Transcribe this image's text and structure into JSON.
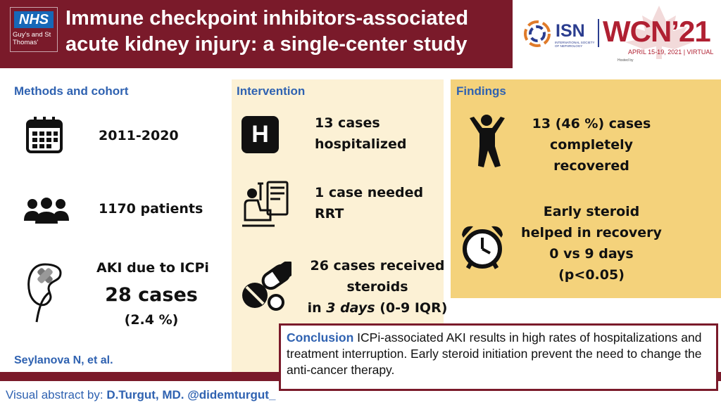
{
  "header": {
    "nhs_logo": "NHS",
    "nhs_trust": "Guy’s and St Thomas’",
    "title_line1": "Immune checkpoint inhibitors-associated",
    "title_line2": "acute kidney injury: a single-center study",
    "isn_label": "ISN",
    "isn_sub": "INTERNATIONAL SOCIETY OF NEPHROLOGY",
    "wcn_label": "WCN’21",
    "wcn_date": "APRIL 15-19, 2021 | VIRTUAL",
    "hosted_by": "Hosted by"
  },
  "methods": {
    "title": "Methods and cohort",
    "period": "2011-2020",
    "patients": "1170 patients",
    "aki_label": "AKI due to ICPi",
    "aki_cases": "28 cases",
    "aki_pct": "(2.4 %)",
    "icons": [
      "calendar-icon",
      "people-icon",
      "kidney-icon"
    ]
  },
  "intervention": {
    "title": "Intervention",
    "hosp_line1": "13 cases",
    "hosp_line2": "hospitalized",
    "rrt_line1": "1 case needed",
    "rrt_line2": "RRT",
    "ster_line1": "26 cases received",
    "ster_line2": "steroids",
    "ster_line3_pre": "in ",
    "ster_line3_em": "3 days",
    "ster_line3_post": " (0-9 IQR)",
    "hospital_icon_letter": "H",
    "icons": [
      "hospital-icon",
      "dialysis-icon",
      "pills-icon"
    ]
  },
  "findings": {
    "title": "Findings",
    "rec_line1": "13  (46 %) cases",
    "rec_line2": "completely",
    "rec_line3": "recovered",
    "ster_line1": "Early steroid",
    "ster_line2": "helped  in recovery",
    "ster_line3": "0 vs 9 days",
    "ster_line4": "(p<0.05)",
    "icons": [
      "person-jumping-icon",
      "alarm-clock-icon"
    ]
  },
  "author": "Seylanova N, et al.",
  "conclusion": {
    "label": "Conclusion",
    "text": " ICPi-associated AKI results in high rates of hospitalizations and treatment interruption. Early steroid initiation prevent the need to change the anti-cancer therapy."
  },
  "footer": {
    "prefix": "Visual abstract by: ",
    "name": "D.Turgut, MD. @didemturgut_"
  },
  "colors": {
    "header_bg": "#7a1a2a",
    "accent_blue": "#2f62b1",
    "intervention_bg": "#fcf1d5",
    "findings_bg": "#f4d27b"
  }
}
